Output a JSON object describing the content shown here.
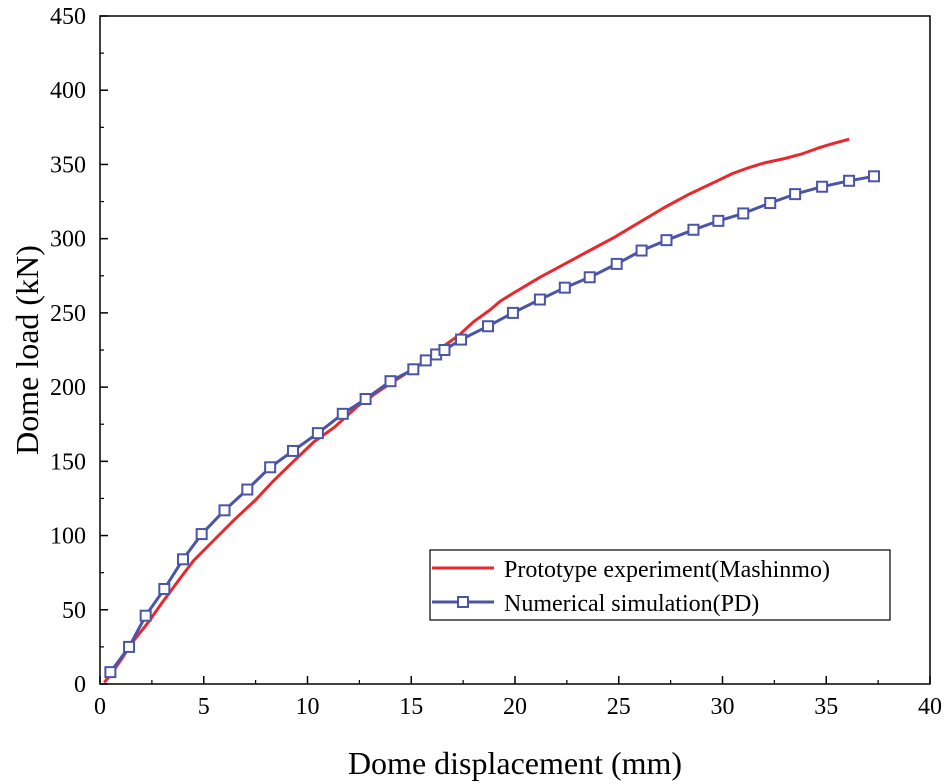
{
  "chart_data": {
    "type": "line",
    "title": "",
    "xlabel": "Dome displacement (mm)",
    "ylabel": "Dome load (kN)",
    "xlim": [
      0,
      40
    ],
    "ylim": [
      0,
      450
    ],
    "x_ticks": [
      "0",
      "5",
      "10",
      "15",
      "20",
      "25",
      "30",
      "35",
      "40"
    ],
    "y_ticks": [
      "0",
      "50",
      "100",
      "150",
      "200",
      "250",
      "300",
      "350",
      "400",
      "450"
    ],
    "grid": false,
    "legend_position": "bottom-right",
    "series": [
      {
        "name": "Prototype experiment(Mashinmo)",
        "color": "#e8282d",
        "marker": "none",
        "points": [
          [
            0.2,
            1
          ],
          [
            0.5,
            6
          ],
          [
            1.0,
            16
          ],
          [
            1.5,
            27
          ],
          [
            2.3,
            41
          ],
          [
            3.0,
            55
          ],
          [
            3.8,
            70
          ],
          [
            4.5,
            83
          ],
          [
            5.5,
            97
          ],
          [
            6.5,
            111
          ],
          [
            7.5,
            124
          ],
          [
            8.3,
            136
          ],
          [
            9.4,
            151
          ],
          [
            10.3,
            163
          ],
          [
            11.3,
            173
          ],
          [
            12.4,
            187
          ],
          [
            13.4,
            197
          ],
          [
            14.5,
            207
          ],
          [
            15.5,
            216
          ],
          [
            16.5,
            227
          ],
          [
            17.3,
            235
          ],
          [
            18.0,
            244
          ],
          [
            18.8,
            252
          ],
          [
            19.3,
            258
          ],
          [
            20.0,
            264
          ],
          [
            21.2,
            274
          ],
          [
            22.4,
            283
          ],
          [
            23.6,
            292
          ],
          [
            24.8,
            301
          ],
          [
            26.0,
            311
          ],
          [
            27.2,
            321
          ],
          [
            28.4,
            330
          ],
          [
            29.6,
            338
          ],
          [
            30.5,
            344
          ],
          [
            31.3,
            348
          ],
          [
            32.0,
            351
          ],
          [
            33.0,
            354
          ],
          [
            33.8,
            357
          ],
          [
            34.6,
            361
          ],
          [
            35.3,
            364
          ],
          [
            36.1,
            367
          ]
        ]
      },
      {
        "name": "Numerical simulation(PD)",
        "color": "#4a55a8",
        "marker": "square",
        "points": [
          [
            0.5,
            8
          ],
          [
            1.4,
            25
          ],
          [
            2.2,
            46
          ],
          [
            3.1,
            64
          ],
          [
            4.0,
            84
          ],
          [
            4.9,
            101
          ],
          [
            6.0,
            117
          ],
          [
            7.1,
            131
          ],
          [
            8.2,
            146
          ],
          [
            9.3,
            157
          ],
          [
            10.5,
            169
          ],
          [
            11.7,
            182
          ],
          [
            12.8,
            192
          ],
          [
            14.0,
            204
          ],
          [
            15.1,
            212
          ],
          [
            15.7,
            218
          ],
          [
            16.2,
            222
          ],
          [
            16.6,
            225
          ],
          [
            17.4,
            232
          ],
          [
            18.7,
            241
          ],
          [
            19.9,
            250
          ],
          [
            21.2,
            259
          ],
          [
            22.4,
            267
          ],
          [
            23.6,
            274
          ],
          [
            24.9,
            283
          ],
          [
            26.1,
            292
          ],
          [
            27.3,
            299
          ],
          [
            28.6,
            306
          ],
          [
            29.8,
            312
          ],
          [
            31.0,
            317
          ],
          [
            32.3,
            324
          ],
          [
            33.5,
            330
          ],
          [
            34.8,
            335
          ],
          [
            36.1,
            339
          ],
          [
            37.3,
            342
          ]
        ]
      }
    ]
  }
}
